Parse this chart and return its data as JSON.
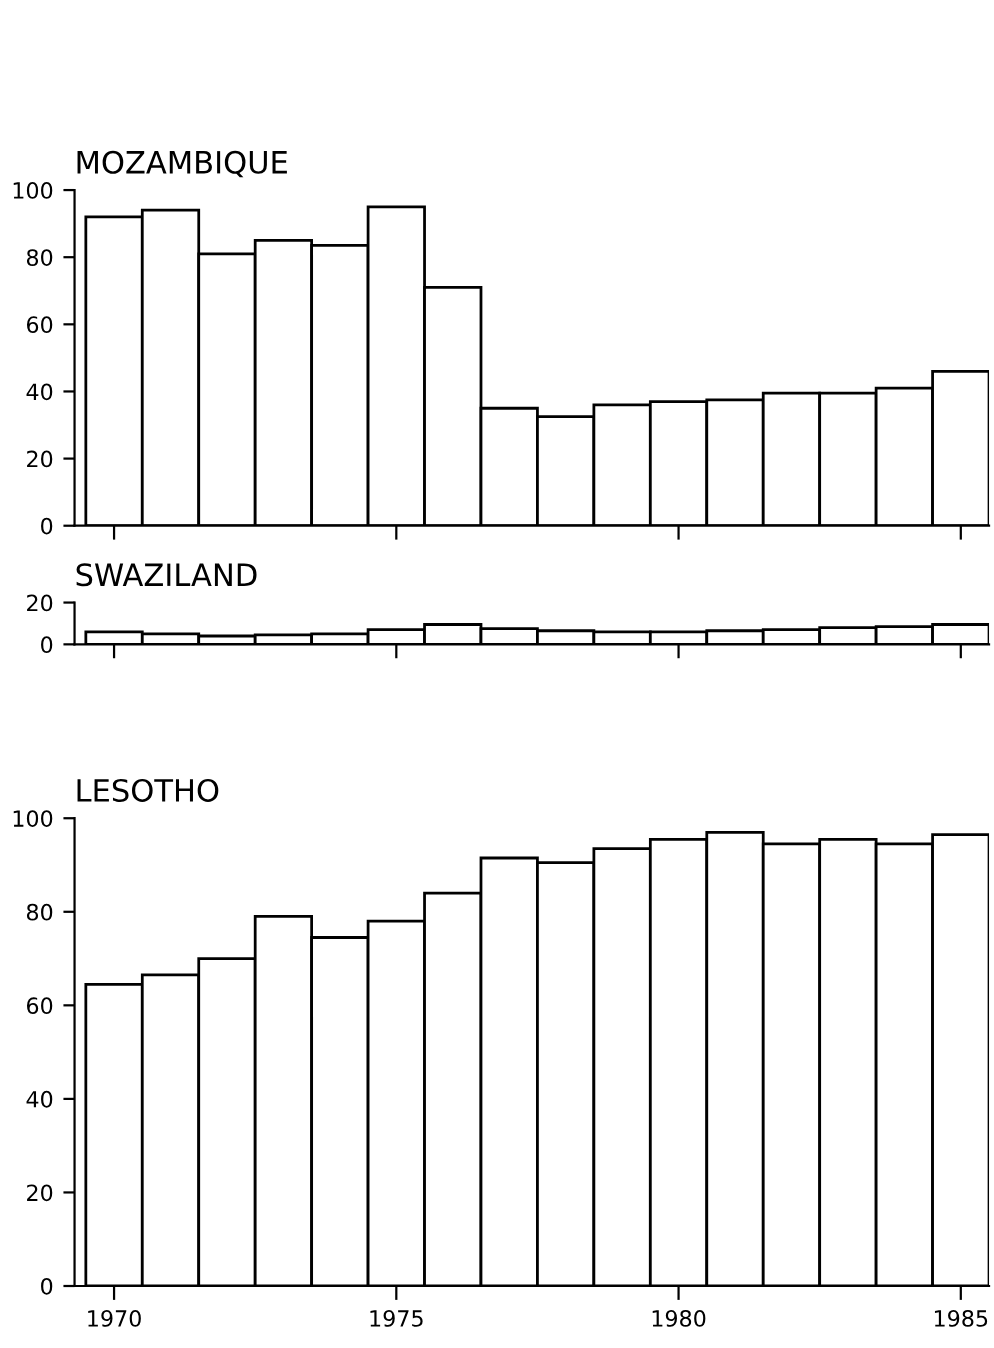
{
  "chart_data": [
    {
      "type": "bar",
      "title": "MOZAMBIQUE",
      "x": [
        1970,
        1971,
        1972,
        1973,
        1974,
        1975,
        1976,
        1977,
        1978,
        1979,
        1980,
        1981,
        1982,
        1983,
        1984,
        1985
      ],
      "series": [
        {
          "color": "#ffffff",
          "values": [
            92,
            94,
            81,
            85,
            83.5,
            95,
            71,
            35,
            32.5,
            36,
            37,
            37.5,
            39.5,
            39.5,
            41,
            46
          ]
        }
      ],
      "xlim": [
        1969.3,
        1985.5
      ],
      "xticks": [
        1970,
        1975,
        1980,
        1985
      ],
      "ylim": [
        0,
        100
      ],
      "yticks": [
        0,
        20,
        40,
        60,
        80,
        100
      ],
      "tick_labels": "y",
      "grid": false,
      "legend": false
    },
    {
      "type": "bar",
      "title": "SWAZILAND",
      "x": [
        1970,
        1971,
        1972,
        1973,
        1974,
        1975,
        1976,
        1977,
        1978,
        1979,
        1980,
        1981,
        1982,
        1983,
        1984,
        1985
      ],
      "series": [
        {
          "color": "#ffffff",
          "values": [
            6,
            5,
            4,
            4.5,
            5,
            7,
            9.5,
            7.5,
            6.5,
            6,
            6,
            6.5,
            7,
            8,
            8.5,
            9.5
          ]
        }
      ],
      "xlim": [
        1969.3,
        1985.5
      ],
      "xticks": [
        1970,
        1975,
        1980,
        1985
      ],
      "ylim": [
        0,
        20
      ],
      "yticks": [
        0,
        20
      ],
      "tick_labels": "y",
      "grid": false,
      "legend": false
    },
    {
      "type": "bar",
      "title": "LESOTHO",
      "x": [
        1970,
        1971,
        1972,
        1973,
        1974,
        1975,
        1976,
        1977,
        1978,
        1979,
        1980,
        1981,
        1982,
        1983,
        1984,
        1985
      ],
      "series": [
        {
          "color": "#ffffff",
          "values": [
            64.5,
            66.5,
            70,
            79,
            74.5,
            78,
            84,
            91.5,
            90.5,
            93.5,
            95.5,
            97,
            94.5,
            95.5,
            94.5,
            96.5
          ]
        }
      ],
      "xlim": [
        1969.3,
        1985.5
      ],
      "xticks": [
        1970,
        1975,
        1980,
        1985
      ],
      "ylim": [
        0,
        100
      ],
      "yticks": [
        0,
        20,
        40,
        60,
        80,
        100
      ],
      "grid": false,
      "legend": false
    }
  ]
}
